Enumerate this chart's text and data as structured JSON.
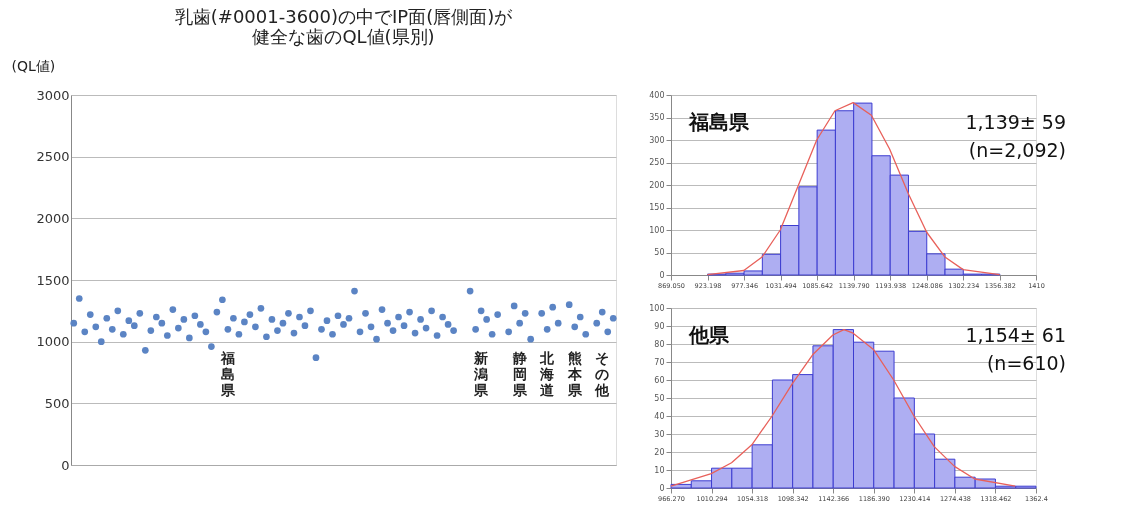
{
  "chart_data": [
    {
      "type": "scatter",
      "title": "乳歯(#0001-3600)の中でIP面(唇側面)が",
      "subtitle": "健全な歯のQL値(県別)",
      "ylabel": "(QL値)",
      "ylim": [
        0,
        3000
      ],
      "yticks": [
        0,
        500,
        1000,
        1500,
        2000,
        2500,
        3000
      ],
      "grid": "y",
      "marker": "circle",
      "categories": [
        null,
        null,
        null,
        null,
        null,
        null,
        null,
        null,
        null,
        null,
        null,
        null,
        null,
        null,
        null,
        null,
        null,
        null,
        null,
        null,
        null,
        null,
        null,
        null,
        null,
        null,
        null,
        null,
        "福島県",
        null,
        null,
        null,
        null,
        null,
        null,
        null,
        null,
        null,
        null,
        null,
        null,
        null,
        null,
        null,
        null,
        null,
        null,
        null,
        null,
        null,
        null,
        null,
        null,
        null,
        null,
        null,
        null,
        null,
        null,
        null,
        null,
        null,
        null,
        null,
        null,
        null,
        null,
        null,
        null,
        null,
        null,
        null,
        null,
        null,
        "新潟県",
        null,
        null,
        null,
        null,
        null,
        null,
        "静岡県",
        null,
        null,
        null,
        null,
        "北海道",
        null,
        null,
        null,
        null,
        "熊本県",
        null,
        null,
        null,
        null,
        "その他",
        null,
        null
      ],
      "series": [
        {
          "color": "#5b84c4",
          "values": [
            1150,
            1350,
            1080,
            1220,
            1120,
            1000,
            1190,
            1100,
            1250,
            1060,
            1170,
            1130,
            1230,
            930,
            1090,
            1200,
            1150,
            1050,
            1260,
            1110,
            1180,
            1030,
            1210,
            1140,
            1080,
            960,
            1240,
            1340,
            1100,
            1190,
            1060,
            1160,
            1220,
            1120,
            1270,
            1040,
            1180,
            1090,
            1150,
            1230,
            1070,
            1200,
            1130,
            1250,
            870,
            1100,
            1170,
            1060,
            1210,
            1140,
            1190,
            1410,
            1080,
            1230,
            1120,
            1020,
            1260,
            1150,
            1090,
            1200,
            1130,
            1240,
            1070,
            1180,
            1110,
            1250,
            1050,
            1200,
            1140,
            1090,
            null,
            null,
            1410,
            1100,
            1250,
            1180,
            1060,
            1220,
            null,
            1080,
            1290,
            1150,
            1230,
            1020,
            null,
            1230,
            1100,
            1280,
            1150,
            null,
            1300,
            1120,
            1200,
            1060,
            null,
            1150,
            1240,
            1080,
            1190
          ]
        }
      ]
    },
    {
      "type": "histogram",
      "color": "#aeaef2",
      "bins": [
        923.198,
        950.272,
        977.346,
        1004.42,
        1031.494,
        1058.568,
        1085.642,
        1112.716,
        1139.79,
        1166.864,
        1193.938,
        1221.012,
        1248.086,
        1275.16,
        1302.234,
        1329.308,
        1356.382
      ],
      "values": [
        2,
        4,
        9,
        46,
        110,
        196,
        322,
        365,
        382,
        265,
        222,
        97,
        47,
        13,
        2,
        2
      ],
      "xlim": [
        869.05,
        1410
      ],
      "ylim": [
        0,
        400
      ],
      "yticks": [
        0,
        50,
        100,
        150,
        200,
        250,
        300,
        350,
        400
      ],
      "grid": "y",
      "xticks": [
        {
          "value": 869.05,
          "label": "869.050"
        },
        923.198,
        977.346,
        1031.494,
        1085.642,
        {
          "value": 1139.79,
          "label": "1139.790"
        },
        1193.938,
        1248.086,
        1302.234,
        1356.382,
        1410
      ],
      "series": [
        {
          "type": "line",
          "color": "#e8605a",
          "x": [
            923,
            977,
            1004,
            1031,
            1058,
            1085,
            1112,
            1139,
            1166,
            1193,
            1221,
            1248,
            1275,
            1302,
            1356
          ],
          "values": [
            1,
            10,
            40,
            100,
            200,
            300,
            365,
            383,
            355,
            280,
            180,
            95,
            40,
            12,
            1
          ]
        }
      ],
      "annotations": [
        "福島県",
        "1,139± 59",
        "(n=2,092)"
      ]
    },
    {
      "type": "histogram",
      "color": "#aeaef2",
      "bins": [
        966.27,
        988.282,
        1010.294,
        1032.306,
        1054.318,
        1076.33,
        1098.342,
        1120.354,
        1142.366,
        1164.378,
        1186.39,
        1208.402,
        1230.414,
        1252.426,
        1274.438,
        1296.45,
        1318.462,
        1340.474,
        1362.486
      ],
      "values": [
        2,
        4,
        11,
        11,
        24,
        60,
        63,
        79,
        88,
        81,
        76,
        50,
        30,
        16,
        6,
        5,
        1,
        1
      ],
      "xlim": [
        966.27,
        1362.486
      ],
      "ylim": [
        0,
        100
      ],
      "yticks": [
        0,
        10,
        20,
        30,
        40,
        50,
        60,
        70,
        80,
        90,
        100
      ],
      "grid": "y",
      "xticks": [
        {
          "value": 966.27,
          "label": "966.270"
        },
        1010.294,
        1054.318,
        1098.342,
        1142.366,
        {
          "value": 1186.39,
          "label": "1186.390"
        },
        1230.414,
        1274.438,
        1318.462,
        1362.4
      ],
      "series": [
        {
          "type": "line",
          "color": "#e8605a",
          "x": [
            966.27,
            1010,
            1032,
            1054,
            1076,
            1098,
            1120,
            1142,
            1154,
            1164,
            1186,
            1208,
            1230,
            1252,
            1274,
            1296,
            1340
          ],
          "values": [
            1,
            8,
            14,
            24,
            40,
            58,
            74,
            85,
            88,
            86,
            77,
            60,
            40,
            23,
            12,
            5,
            1
          ]
        }
      ],
      "annotations": [
        "他県",
        "1,154± 61",
        "(n=610)"
      ]
    }
  ]
}
